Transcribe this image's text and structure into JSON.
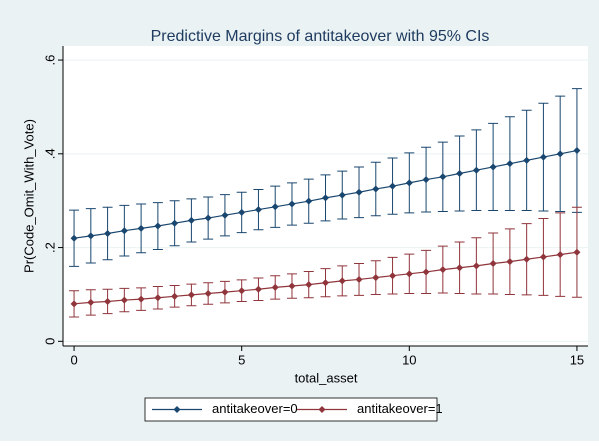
{
  "chart_data": {
    "type": "line",
    "title": "Predictive Margins of antitakeover with 95% CIs",
    "xlabel": "total_asset",
    "ylabel": "Pr(Code_Omit_With_Vote)",
    "x": [
      0,
      0.5,
      1,
      1.5,
      2,
      2.5,
      3,
      3.5,
      4,
      4.5,
      5,
      5.5,
      6,
      6.5,
      7,
      7.5,
      8,
      8.5,
      9,
      9.5,
      10,
      10.5,
      11,
      11.5,
      12,
      12.5,
      13,
      13.5,
      14,
      14.5,
      15
    ],
    "series": [
      {
        "name": "antitakeover=0",
        "color": "#1a476f",
        "values": [
          0.22,
          0.225,
          0.23,
          0.236,
          0.241,
          0.246,
          0.252,
          0.258,
          0.263,
          0.269,
          0.275,
          0.281,
          0.287,
          0.293,
          0.299,
          0.306,
          0.312,
          0.318,
          0.325,
          0.331,
          0.338,
          0.345,
          0.351,
          0.358,
          0.365,
          0.372,
          0.379,
          0.386,
          0.393,
          0.4,
          0.407
        ],
        "errors": [
          0.06,
          0.058,
          0.056,
          0.054,
          0.052,
          0.05,
          0.048,
          0.046,
          0.045,
          0.044,
          0.043,
          0.043,
          0.044,
          0.045,
          0.047,
          0.049,
          0.051,
          0.054,
          0.057,
          0.06,
          0.064,
          0.069,
          0.074,
          0.08,
          0.086,
          0.093,
          0.1,
          0.107,
          0.115,
          0.123,
          0.132
        ]
      },
      {
        "name": "antitakeover=1",
        "color": "#90353b",
        "values": [
          0.08,
          0.083,
          0.085,
          0.088,
          0.09,
          0.093,
          0.096,
          0.099,
          0.102,
          0.105,
          0.108,
          0.111,
          0.115,
          0.118,
          0.121,
          0.125,
          0.129,
          0.132,
          0.136,
          0.14,
          0.144,
          0.148,
          0.153,
          0.157,
          0.161,
          0.166,
          0.17,
          0.175,
          0.18,
          0.185,
          0.19
        ],
        "errors": [
          0.028,
          0.027,
          0.026,
          0.025,
          0.024,
          0.024,
          0.023,
          0.023,
          0.023,
          0.023,
          0.023,
          0.024,
          0.025,
          0.026,
          0.028,
          0.03,
          0.032,
          0.034,
          0.036,
          0.039,
          0.042,
          0.046,
          0.05,
          0.055,
          0.06,
          0.065,
          0.07,
          0.076,
          0.082,
          0.089,
          0.096
        ]
      }
    ],
    "xlim": [
      -0.33,
      15.33
    ],
    "xticks": [
      0,
      5,
      10,
      15
    ],
    "ylim": [
      -0.01,
      0.63
    ],
    "yticks": [
      {
        "value": 0,
        "label": "0"
      },
      {
        "value": 0.2,
        "label": ".2"
      },
      {
        "value": 0.4,
        "label": ".4"
      },
      {
        "value": 0.6,
        "label": ".6"
      }
    ],
    "grid": true,
    "legend": "bottom"
  }
}
